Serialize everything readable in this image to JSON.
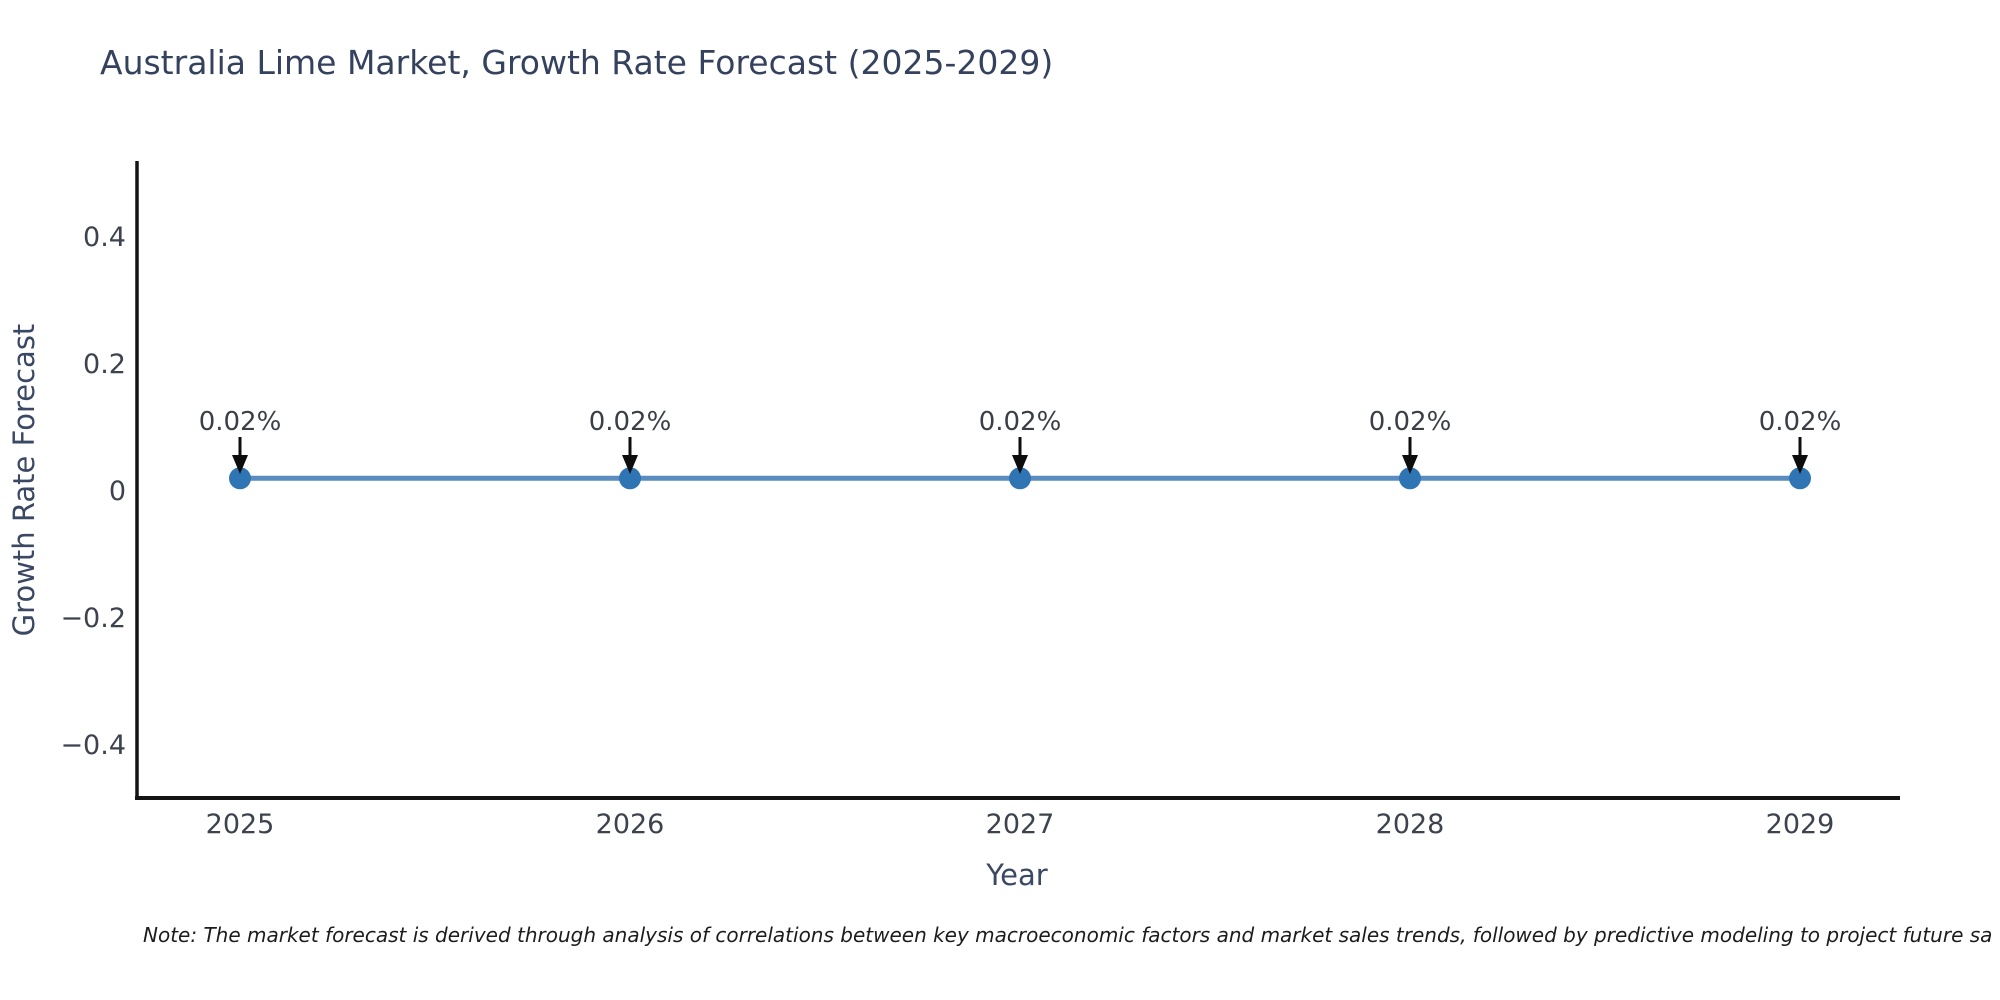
{
  "note": "Note: The market forecast is derived through analysis of correlations between key macroeconomic factors and market sales trends, followed by predictive modeling to project future sa",
  "chart_data": {
    "type": "line",
    "title": "Australia Lime Market, Growth Rate Forecast (2025-2029)",
    "xlabel": "Year",
    "ylabel": "Growth Rate Forecast",
    "x": [
      2025,
      2026,
      2027,
      2028,
      2029
    ],
    "values": [
      0.02,
      0.02,
      0.02,
      0.02,
      0.02
    ],
    "point_labels": [
      "0.02%",
      "0.02%",
      "0.02%",
      "0.02%",
      "0.02%"
    ],
    "xtick_labels": [
      "2025",
      "2026",
      "2027",
      "2028",
      "2029"
    ],
    "yticks": [
      0.4,
      0.2,
      0,
      -0.2,
      -0.4
    ],
    "ytick_labels": [
      "0.4",
      "0.2",
      "0",
      "−0.2",
      "−0.4"
    ],
    "ylim": [
      -0.5,
      0.52
    ],
    "grid": false,
    "legend_position": "none",
    "line_color": "#5a8cc0",
    "marker_color": "#2f74b3",
    "annotation_arrow_color": "#0d0d0d",
    "axis_color": "#141414"
  }
}
